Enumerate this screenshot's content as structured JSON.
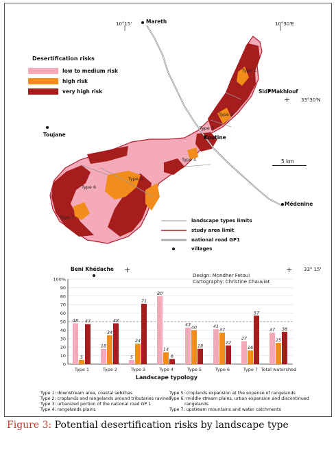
{
  "map": {
    "coords": {
      "lon_10_15": "10°15'",
      "lon_10_30": "10°30'E",
      "lat_33_30": "33°30'N",
      "lat_33_15": "33° 15'"
    },
    "places": {
      "mareth": "Mareth",
      "sidi_makhlouf": "Sidi Makhlouf",
      "toujane": "Toujane",
      "koutine": "Koutine",
      "medenine": "Médenine",
      "beni_khedache": "Beni Khédache"
    },
    "type_labels": [
      "Type 1",
      "Type 2",
      "Type 3",
      "Type 4",
      "Type 5",
      "Type 6",
      "Type 7"
    ],
    "legend": {
      "title": "Desertification risks",
      "items": [
        {
          "label": "low to medium risk",
          "color": "#f4aab8"
        },
        {
          "label": "high risk",
          "color": "#f28c1a"
        },
        {
          "label": "very high risk",
          "color": "#a51d1d"
        }
      ],
      "lines": [
        {
          "label": "landscape types limits",
          "color": "#999999"
        },
        {
          "label": "study area limit",
          "color": "#b01c2e"
        },
        {
          "label": "national road GP1",
          "color": "#888888"
        },
        {
          "label": "villages",
          "color": "#111111"
        }
      ]
    },
    "scale": "5 km",
    "credits": {
      "design": "Design: Mondher Fetoui",
      "cartography": "Cartography: Christine Chauviat"
    }
  },
  "chart_data": {
    "type": "bar",
    "categories": [
      "Type 1",
      "Type 2",
      "Type 3",
      "Type 4",
      "Type 5",
      "Type 6",
      "Type 7",
      "Total watershed"
    ],
    "series": [
      {
        "name": "low to medium risk",
        "color": "#f4aab8",
        "values": [
          48,
          18,
          5,
          80,
          43,
          41,
          27,
          37
        ]
      },
      {
        "name": "high risk",
        "color": "#f28c1a",
        "values": [
          5,
          34,
          24,
          14,
          40,
          37,
          16,
          25
        ]
      },
      {
        "name": "very high risk",
        "color": "#a51d1d",
        "values": [
          47,
          48,
          71,
          6,
          18,
          22,
          57,
          38
        ]
      }
    ],
    "y_ticks": [
      "0",
      "10",
      "20",
      "30",
      "40",
      "50",
      "60",
      "70",
      "80",
      "90",
      "100%"
    ],
    "ylim": [
      0,
      100
    ],
    "xlabel": "Landscape typology",
    "reference_line": 50
  },
  "notes": {
    "left": [
      "Type 1: downstream area, coastal sebkhas",
      "Type 2: croplands and rangelands around tributaries ravines",
      "Type 3: urbanized portion of the national road GP 1",
      "Type 4: rangelands plains"
    ],
    "right": [
      "Type 5: croplands expansion at the expense of rangelands",
      "Type 6: middle stream plains, urban expansion and discontinued",
      "rangelands",
      "Type 7: upstream mountains and water catchments"
    ]
  },
  "caption": {
    "label": "Figure 3:",
    "text": " Potential desertification risks by landscape type"
  }
}
